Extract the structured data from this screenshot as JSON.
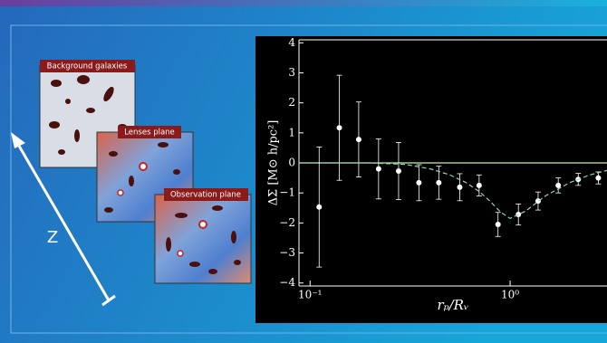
{
  "diagram": {
    "panels": [
      "Background galaxies",
      "Lenses plane",
      "Observation plane"
    ],
    "axis_label": "Z"
  },
  "chart_data": {
    "type": "scatter",
    "y_label": "ΔΣ [M⊙ h/pc²]",
    "x_label": "rₚ/Rᵥ",
    "log_x": true,
    "xlim": [
      0.088,
      3.05
    ],
    "ylim": [
      -4.1,
      4.1
    ],
    "xticks": [
      {
        "value": 0.1,
        "label": "10⁻¹"
      },
      {
        "value": 1,
        "label": "10⁰"
      }
    ],
    "yticks": [
      {
        "value": -4,
        "label": "−4"
      },
      {
        "value": -3,
        "label": "−3"
      },
      {
        "value": -2,
        "label": "−2"
      },
      {
        "value": -1,
        "label": "−1"
      },
      0,
      1,
      2,
      3,
      4
    ],
    "reference_line": 0,
    "series": [
      {
        "color": "#ffffff",
        "x": [
          0.111,
          0.14,
          0.175,
          0.22,
          0.277,
          0.35,
          0.44,
          0.56,
          0.7,
          0.87,
          1.1,
          1.38,
          1.74,
          2.19,
          2.76
        ],
        "values": [
          -1.47,
          1.17,
          0.78,
          -0.2,
          -0.27,
          -0.66,
          -0.66,
          -0.81,
          -0.75,
          -2.05,
          -1.72,
          -1.27,
          -0.75,
          -0.55,
          -0.5
        ],
        "errors": [
          2.0,
          1.75,
          1.25,
          1.0,
          0.95,
          0.6,
          0.55,
          0.45,
          0.35,
          0.4,
          0.35,
          0.3,
          0.25,
          0.2,
          0.2
        ]
      },
      {
        "type": "line",
        "color": "#8fd3c4",
        "dashed": true,
        "x": [
          0.088,
          0.2,
          0.3,
          0.4,
          0.5,
          0.6,
          0.7,
          0.8,
          0.9,
          1.0,
          1.2,
          1.5,
          2,
          2.5,
          3.05
        ],
        "values": [
          0,
          0,
          -0.05,
          -0.2,
          -0.4,
          -0.65,
          -0.95,
          -1.3,
          -1.65,
          -1.85,
          -1.6,
          -1.1,
          -0.65,
          -0.4,
          -0.25
        ]
      }
    ]
  }
}
